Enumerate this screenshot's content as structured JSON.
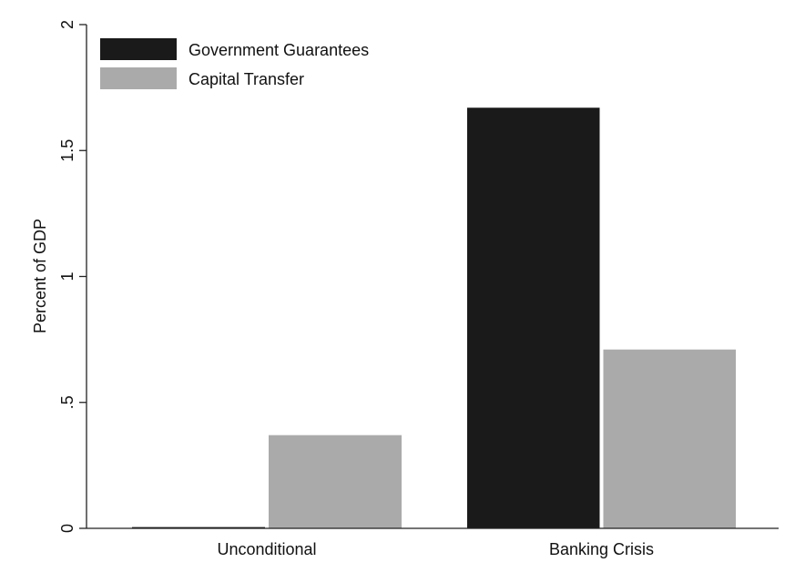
{
  "chart_data": {
    "type": "bar",
    "categories": [
      "Unconditional",
      "Banking Crisis"
    ],
    "series": [
      {
        "name": "Government Guarantees",
        "values": [
          0.005,
          1.67
        ],
        "color": "#1a1a1a"
      },
      {
        "name": "Capital Transfer",
        "values": [
          0.37,
          0.71
        ],
        "color": "#aaaaaa"
      }
    ],
    "ylabel": "Percent of GDP",
    "xlabel": "",
    "ylim": [
      0,
      2
    ],
    "yticks": [
      {
        "value": 0,
        "label": "0"
      },
      {
        "value": 0.5,
        "label": ".5"
      },
      {
        "value": 1,
        "label": "1"
      },
      {
        "value": 1.5,
        "label": "1.5"
      },
      {
        "value": 2,
        "label": "2"
      }
    ],
    "grid": false,
    "legend_position": "top-left"
  }
}
